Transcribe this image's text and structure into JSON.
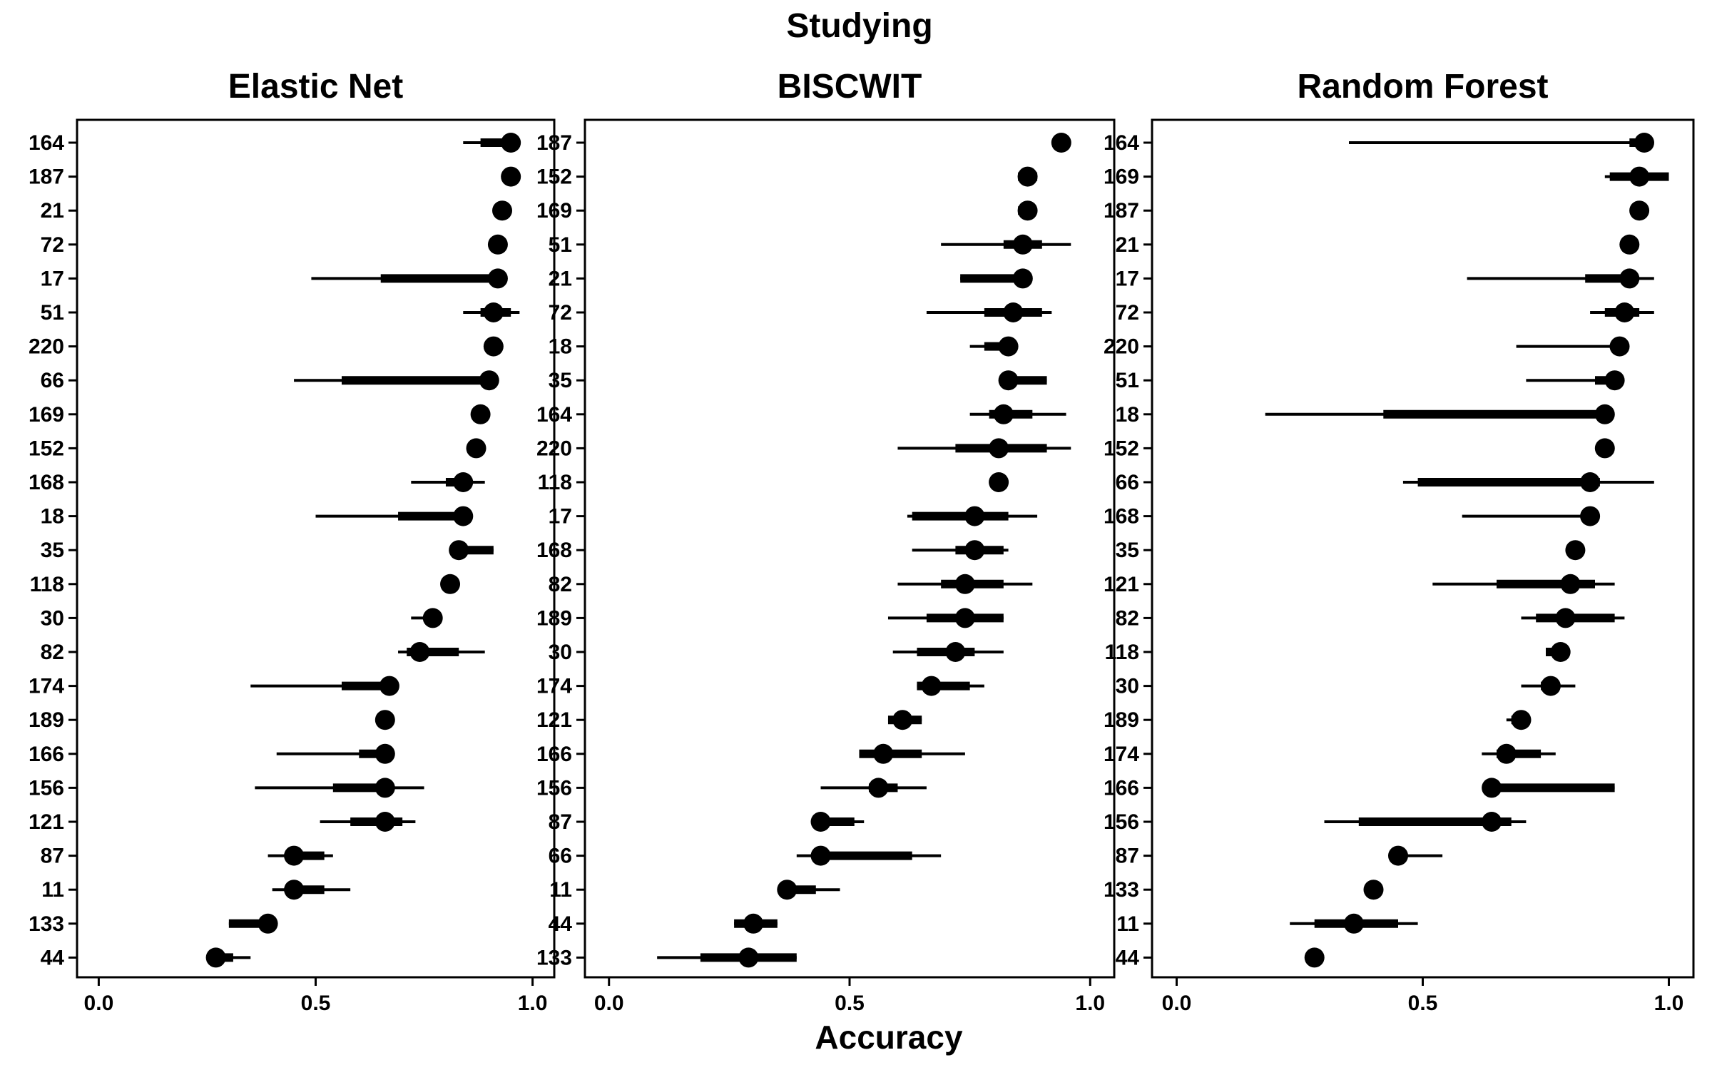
{
  "figure": {
    "title": "Studying",
    "xlabel": "Accuracy"
  },
  "chart_data": [
    {
      "type": "scatter",
      "title": "Elastic Net",
      "xlim": [
        -0.05,
        1.05
      ],
      "xticks": [
        "0.0",
        "0.5",
        "1.0"
      ],
      "grid": false,
      "rows": [
        {
          "label": "164",
          "value": 0.95,
          "ci_inner": [
            0.88,
            0.97
          ],
          "ci_outer": [
            0.84,
            0.97
          ]
        },
        {
          "label": "187",
          "value": 0.95,
          "ci_inner": null,
          "ci_outer": null
        },
        {
          "label": "21",
          "value": 0.93,
          "ci_inner": null,
          "ci_outer": null
        },
        {
          "label": "72",
          "value": 0.92,
          "ci_inner": null,
          "ci_outer": null
        },
        {
          "label": "17",
          "value": 0.92,
          "ci_inner": [
            0.65,
            0.93
          ],
          "ci_outer": [
            0.49,
            0.93
          ]
        },
        {
          "label": "51",
          "value": 0.91,
          "ci_inner": [
            0.88,
            0.95
          ],
          "ci_outer": [
            0.84,
            0.97
          ]
        },
        {
          "label": "220",
          "value": 0.91,
          "ci_inner": null,
          "ci_outer": null
        },
        {
          "label": "66",
          "value": 0.9,
          "ci_inner": [
            0.56,
            0.91
          ],
          "ci_outer": [
            0.45,
            0.91
          ]
        },
        {
          "label": "169",
          "value": 0.88,
          "ci_inner": null,
          "ci_outer": null
        },
        {
          "label": "152",
          "value": 0.87,
          "ci_inner": null,
          "ci_outer": null
        },
        {
          "label": "168",
          "value": 0.84,
          "ci_inner": [
            0.8,
            0.86
          ],
          "ci_outer": [
            0.72,
            0.89
          ]
        },
        {
          "label": "18",
          "value": 0.84,
          "ci_inner": [
            0.69,
            0.86
          ],
          "ci_outer": [
            0.5,
            0.86
          ]
        },
        {
          "label": "35",
          "value": 0.83,
          "ci_inner": [
            0.83,
            0.91
          ],
          "ci_outer": [
            0.83,
            0.91
          ]
        },
        {
          "label": "118",
          "value": 0.81,
          "ci_inner": null,
          "ci_outer": null
        },
        {
          "label": "30",
          "value": 0.77,
          "ci_inner": [
            0.75,
            0.78
          ],
          "ci_outer": [
            0.72,
            0.78
          ]
        },
        {
          "label": "82",
          "value": 0.74,
          "ci_inner": [
            0.71,
            0.83
          ],
          "ci_outer": [
            0.69,
            0.89
          ]
        },
        {
          "label": "174",
          "value": 0.67,
          "ci_inner": [
            0.56,
            0.68
          ],
          "ci_outer": [
            0.35,
            0.68
          ]
        },
        {
          "label": "189",
          "value": 0.66,
          "ci_inner": null,
          "ci_outer": null
        },
        {
          "label": "166",
          "value": 0.66,
          "ci_inner": [
            0.6,
            0.67
          ],
          "ci_outer": [
            0.41,
            0.67
          ]
        },
        {
          "label": "156",
          "value": 0.66,
          "ci_inner": [
            0.54,
            0.68
          ],
          "ci_outer": [
            0.36,
            0.75
          ]
        },
        {
          "label": "121",
          "value": 0.66,
          "ci_inner": [
            0.58,
            0.7
          ],
          "ci_outer": [
            0.51,
            0.73
          ]
        },
        {
          "label": "87",
          "value": 0.45,
          "ci_inner": [
            0.43,
            0.52
          ],
          "ci_outer": [
            0.39,
            0.54
          ]
        },
        {
          "label": "11",
          "value": 0.45,
          "ci_inner": [
            0.43,
            0.52
          ],
          "ci_outer": [
            0.4,
            0.58
          ]
        },
        {
          "label": "133",
          "value": 0.39,
          "ci_inner": [
            0.3,
            0.4
          ],
          "ci_outer": [
            0.3,
            0.4
          ]
        },
        {
          "label": "44",
          "value": 0.27,
          "ci_inner": [
            0.27,
            0.31
          ],
          "ci_outer": [
            0.27,
            0.35
          ]
        }
      ]
    },
    {
      "type": "scatter",
      "title": "BISCWIT",
      "xlim": [
        -0.05,
        1.05
      ],
      "xticks": [
        "0.0",
        "0.5",
        "1.0"
      ],
      "grid": false,
      "rows": [
        {
          "label": "187",
          "value": 0.94,
          "ci_inner": null,
          "ci_outer": null
        },
        {
          "label": "152",
          "value": 0.87,
          "ci_inner": [
            0.85,
            0.89
          ],
          "ci_outer": [
            0.85,
            0.89
          ]
        },
        {
          "label": "169",
          "value": 0.87,
          "ci_inner": [
            0.85,
            0.88
          ],
          "ci_outer": [
            0.85,
            0.88
          ]
        },
        {
          "label": "51",
          "value": 0.86,
          "ci_inner": [
            0.82,
            0.9
          ],
          "ci_outer": [
            0.69,
            0.96
          ]
        },
        {
          "label": "21",
          "value": 0.86,
          "ci_inner": [
            0.73,
            0.86
          ],
          "ci_outer": [
            0.73,
            0.86
          ]
        },
        {
          "label": "72",
          "value": 0.84,
          "ci_inner": [
            0.78,
            0.9
          ],
          "ci_outer": [
            0.66,
            0.92
          ]
        },
        {
          "label": "18",
          "value": 0.83,
          "ci_inner": [
            0.78,
            0.84
          ],
          "ci_outer": [
            0.75,
            0.84
          ]
        },
        {
          "label": "35",
          "value": 0.83,
          "ci_inner": [
            0.83,
            0.91
          ],
          "ci_outer": [
            0.83,
            0.91
          ]
        },
        {
          "label": "164",
          "value": 0.82,
          "ci_inner": [
            0.79,
            0.88
          ],
          "ci_outer": [
            0.75,
            0.95
          ]
        },
        {
          "label": "220",
          "value": 0.81,
          "ci_inner": [
            0.72,
            0.91
          ],
          "ci_outer": [
            0.6,
            0.96
          ]
        },
        {
          "label": "118",
          "value": 0.81,
          "ci_inner": null,
          "ci_outer": null
        },
        {
          "label": "17",
          "value": 0.76,
          "ci_inner": [
            0.63,
            0.83
          ],
          "ci_outer": [
            0.62,
            0.89
          ]
        },
        {
          "label": "168",
          "value": 0.76,
          "ci_inner": [
            0.72,
            0.82
          ],
          "ci_outer": [
            0.63,
            0.83
          ]
        },
        {
          "label": "82",
          "value": 0.74,
          "ci_inner": [
            0.69,
            0.82
          ],
          "ci_outer": [
            0.6,
            0.88
          ]
        },
        {
          "label": "189",
          "value": 0.74,
          "ci_inner": [
            0.66,
            0.82
          ],
          "ci_outer": [
            0.58,
            0.82
          ]
        },
        {
          "label": "30",
          "value": 0.72,
          "ci_inner": [
            0.64,
            0.76
          ],
          "ci_outer": [
            0.59,
            0.82
          ]
        },
        {
          "label": "174",
          "value": 0.67,
          "ci_inner": [
            0.64,
            0.75
          ],
          "ci_outer": [
            0.64,
            0.78
          ]
        },
        {
          "label": "121",
          "value": 0.61,
          "ci_inner": [
            0.58,
            0.65
          ],
          "ci_outer": [
            0.58,
            0.65
          ]
        },
        {
          "label": "166",
          "value": 0.57,
          "ci_inner": [
            0.52,
            0.65
          ],
          "ci_outer": [
            0.52,
            0.74
          ]
        },
        {
          "label": "156",
          "value": 0.56,
          "ci_inner": [
            0.54,
            0.6
          ],
          "ci_outer": [
            0.44,
            0.66
          ]
        },
        {
          "label": "87",
          "value": 0.44,
          "ci_inner": [
            0.44,
            0.51
          ],
          "ci_outer": [
            0.44,
            0.53
          ]
        },
        {
          "label": "66",
          "value": 0.44,
          "ci_inner": [
            0.44,
            0.63
          ],
          "ci_outer": [
            0.39,
            0.69
          ]
        },
        {
          "label": "11",
          "value": 0.37,
          "ci_inner": [
            0.37,
            0.43
          ],
          "ci_outer": [
            0.37,
            0.48
          ]
        },
        {
          "label": "44",
          "value": 0.3,
          "ci_inner": [
            0.26,
            0.35
          ],
          "ci_outer": [
            0.26,
            0.35
          ]
        },
        {
          "label": "133",
          "value": 0.29,
          "ci_inner": [
            0.19,
            0.39
          ],
          "ci_outer": [
            0.1,
            0.39
          ]
        }
      ]
    },
    {
      "type": "scatter",
      "title": "Random Forest",
      "xlim": [
        -0.05,
        1.05
      ],
      "xticks": [
        "0.0",
        "0.5",
        "1.0"
      ],
      "grid": false,
      "rows": [
        {
          "label": "164",
          "value": 0.95,
          "ci_inner": [
            0.92,
            0.96
          ],
          "ci_outer": [
            0.35,
            0.96
          ]
        },
        {
          "label": "169",
          "value": 0.94,
          "ci_inner": [
            0.88,
            1.0
          ],
          "ci_outer": [
            0.87,
            1.0
          ]
        },
        {
          "label": "187",
          "value": 0.94,
          "ci_inner": null,
          "ci_outer": null
        },
        {
          "label": "21",
          "value": 0.92,
          "ci_inner": null,
          "ci_outer": null
        },
        {
          "label": "17",
          "value": 0.92,
          "ci_inner": [
            0.83,
            0.93
          ],
          "ci_outer": [
            0.59,
            0.97
          ]
        },
        {
          "label": "72",
          "value": 0.91,
          "ci_inner": [
            0.87,
            0.94
          ],
          "ci_outer": [
            0.84,
            0.97
          ]
        },
        {
          "label": "220",
          "value": 0.9,
          "ci_inner": null,
          "ci_outer": [
            0.69,
            0.9
          ]
        },
        {
          "label": "51",
          "value": 0.89,
          "ci_inner": [
            0.85,
            0.9
          ],
          "ci_outer": [
            0.71,
            0.9
          ]
        },
        {
          "label": "18",
          "value": 0.87,
          "ci_inner": [
            0.42,
            0.88
          ],
          "ci_outer": [
            0.18,
            0.88
          ]
        },
        {
          "label": "152",
          "value": 0.87,
          "ci_inner": null,
          "ci_outer": null
        },
        {
          "label": "66",
          "value": 0.84,
          "ci_inner": [
            0.49,
            0.86
          ],
          "ci_outer": [
            0.46,
            0.97
          ]
        },
        {
          "label": "168",
          "value": 0.84,
          "ci_inner": null,
          "ci_outer": [
            0.58,
            0.84
          ]
        },
        {
          "label": "35",
          "value": 0.81,
          "ci_inner": null,
          "ci_outer": null
        },
        {
          "label": "121",
          "value": 0.8,
          "ci_inner": [
            0.65,
            0.85
          ],
          "ci_outer": [
            0.52,
            0.89
          ]
        },
        {
          "label": "82",
          "value": 0.79,
          "ci_inner": [
            0.73,
            0.89
          ],
          "ci_outer": [
            0.7,
            0.91
          ]
        },
        {
          "label": "118",
          "value": 0.78,
          "ci_inner": [
            0.75,
            0.79
          ],
          "ci_outer": [
            0.75,
            0.8
          ]
        },
        {
          "label": "30",
          "value": 0.76,
          "ci_inner": [
            0.74,
            0.77
          ],
          "ci_outer": [
            0.7,
            0.81
          ]
        },
        {
          "label": "189",
          "value": 0.7,
          "ci_inner": [
            0.68,
            0.71
          ],
          "ci_outer": [
            0.67,
            0.71
          ]
        },
        {
          "label": "174",
          "value": 0.67,
          "ci_inner": [
            0.65,
            0.74
          ],
          "ci_outer": [
            0.62,
            0.77
          ]
        },
        {
          "label": "166",
          "value": 0.64,
          "ci_inner": [
            0.64,
            0.89
          ],
          "ci_outer": [
            0.64,
            0.89
          ]
        },
        {
          "label": "156",
          "value": 0.64,
          "ci_inner": [
            0.37,
            0.68
          ],
          "ci_outer": [
            0.3,
            0.71
          ]
        },
        {
          "label": "87",
          "value": 0.45,
          "ci_inner": null,
          "ci_outer": [
            0.45,
            0.54
          ]
        },
        {
          "label": "133",
          "value": 0.4,
          "ci_inner": null,
          "ci_outer": null
        },
        {
          "label": "11",
          "value": 0.36,
          "ci_inner": [
            0.28,
            0.45
          ],
          "ci_outer": [
            0.23,
            0.49
          ]
        },
        {
          "label": "44",
          "value": 0.28,
          "ci_inner": null,
          "ci_outer": null
        }
      ]
    }
  ]
}
